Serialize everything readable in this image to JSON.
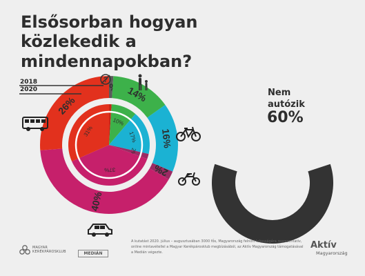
{
  "title": "Elsősorban hogyan közlekedik a mindennapokban?",
  "legend": {
    "outer": "2018",
    "inner": "2020"
  },
  "colors": {
    "gray": "#5b5b5b",
    "red": "#e2311d",
    "green": "#3db14a",
    "cyan": "#1bb2d3",
    "purple": "#9c2a63",
    "magenta": "#c6206b",
    "darkred": "#c62618",
    "background": "#efefef",
    "gauge": "#333333",
    "text": "#2d2d2d"
  },
  "chart_data": [
    {
      "type": "pie",
      "title": "Elsősorban hogyan közlekedik a mindennapokban?",
      "series": [
        {
          "name": "2018",
          "labels": [
            "?",
            "gyalog",
            "kerékpár",
            "motor",
            "autó",
            "busz"
          ],
          "icons": [
            "question-icon",
            "pedestrian-icon",
            "bicycle-icon",
            "motorcycle-icon",
            "car-icon",
            "bus-icon"
          ],
          "values": [
            1,
            14,
            16,
            2,
            40,
            26
          ],
          "value_labels": [
            "1%",
            "14%",
            "16%",
            "2%",
            "40%",
            "26%"
          ],
          "colors": [
            "#5b5b5b",
            "#3db14a",
            "#1bb2d3",
            "#9c2a63",
            "#c6206b",
            "#e2311d"
          ]
        },
        {
          "name": "2020",
          "labels": [
            "?",
            "gyalog",
            "kerékpár",
            "motor",
            "autó",
            "busz"
          ],
          "values": [
            1,
            10,
            17,
            2,
            37,
            31
          ],
          "value_labels": [
            "",
            "10%",
            "17%",
            "2%",
            "37%",
            "31%"
          ],
          "colors": [
            "#c62618",
            "#3db14a",
            "#1bb2d3",
            "#9c2a63",
            "#c6206b",
            "#e2311d"
          ]
        }
      ]
    },
    {
      "type": "pie",
      "title": "Nem autózik",
      "values": [
        60
      ],
      "value_labels": [
        "60%"
      ],
      "colors": [
        "#333333"
      ]
    }
  ],
  "gauge": {
    "label": "Nem autózik",
    "value_text": "60%"
  },
  "footnote": "A kutatást 2020. július – augusztusában 3000 fős, Magyarország felnőtt lakosságára reprezentatív, online mintavétellel a Magyar Kerékpárosklub megbízásából, az Aktív Magyarország támogatásával a Medián végezte.",
  "logos": {
    "club": "MAGYAR KERÉKPÁROSKLUB",
    "median": "MEDIÁN",
    "aktiv": "Aktív",
    "aktiv_sub": "Magyarország"
  }
}
